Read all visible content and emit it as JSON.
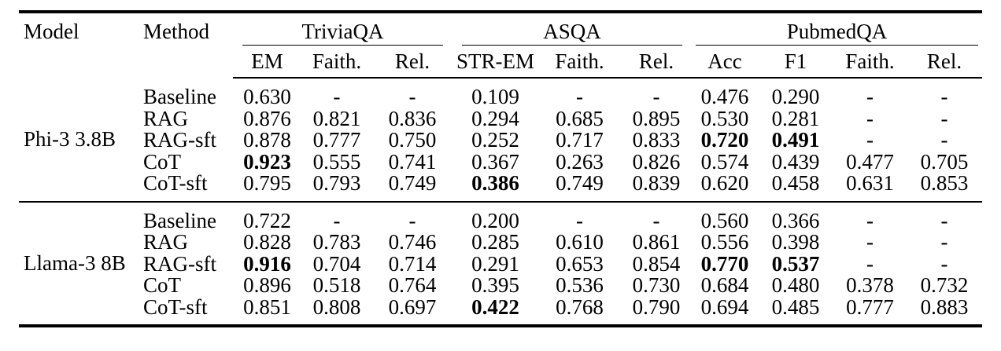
{
  "colors": {
    "background": "#ffffff",
    "text": "#000000",
    "rule": "#000000"
  },
  "table": {
    "model_header": "Model",
    "method_header": "Method",
    "groups": [
      {
        "label": "TriviaQA",
        "subcols": [
          "EM",
          "Faith.",
          "Rel."
        ]
      },
      {
        "label": "ASQA",
        "subcols": [
          "STR-EM",
          "Faith.",
          "Rel."
        ]
      },
      {
        "label": "PubmedQA",
        "subcols": [
          "Acc",
          "F1",
          "Faith.",
          "Rel."
        ]
      }
    ],
    "blocks": [
      {
        "model": "Phi-3 3.8B",
        "rows": [
          {
            "method": "Baseline",
            "values": [
              "0.630",
              "-",
              "-",
              "0.109",
              "-",
              "-",
              "0.476",
              "0.290",
              "-",
              "-"
            ],
            "bold": []
          },
          {
            "method": "RAG",
            "values": [
              "0.876",
              "0.821",
              "0.836",
              "0.294",
              "0.685",
              "0.895",
              "0.530",
              "0.281",
              "-",
              "-"
            ],
            "bold": []
          },
          {
            "method": "RAG-sft",
            "values": [
              "0.878",
              "0.777",
              "0.750",
              "0.252",
              "0.717",
              "0.833",
              "0.720",
              "0.491",
              "-",
              "-"
            ],
            "bold": [
              6,
              7
            ]
          },
          {
            "method": "CoT",
            "values": [
              "0.923",
              "0.555",
              "0.741",
              "0.367",
              "0.263",
              "0.826",
              "0.574",
              "0.439",
              "0.477",
              "0.705"
            ],
            "bold": [
              0
            ]
          },
          {
            "method": "CoT-sft",
            "values": [
              "0.795",
              "0.793",
              "0.749",
              "0.386",
              "0.749",
              "0.839",
              "0.620",
              "0.458",
              "0.631",
              "0.853"
            ],
            "bold": [
              3
            ]
          }
        ]
      },
      {
        "model": "Llama-3 8B",
        "rows": [
          {
            "method": "Baseline",
            "values": [
              "0.722",
              "-",
              "-",
              "0.200",
              "-",
              "-",
              "0.560",
              "0.366",
              "-",
              "-"
            ],
            "bold": []
          },
          {
            "method": "RAG",
            "values": [
              "0.828",
              "0.783",
              "0.746",
              "0.285",
              "0.610",
              "0.861",
              "0.556",
              "0.398",
              "-",
              "-"
            ],
            "bold": []
          },
          {
            "method": "RAG-sft",
            "values": [
              "0.916",
              "0.704",
              "0.714",
              "0.291",
              "0.653",
              "0.854",
              "0.770",
              "0.537",
              "-",
              "-"
            ],
            "bold": [
              0,
              6,
              7
            ]
          },
          {
            "method": "CoT",
            "values": [
              "0.896",
              "0.518",
              "0.764",
              "0.395",
              "0.536",
              "0.730",
              "0.684",
              "0.480",
              "0.378",
              "0.732"
            ],
            "bold": []
          },
          {
            "method": "CoT-sft",
            "values": [
              "0.851",
              "0.808",
              "0.697",
              "0.422",
              "0.768",
              "0.790",
              "0.694",
              "0.485",
              "0.777",
              "0.883"
            ],
            "bold": [
              3
            ]
          }
        ]
      }
    ]
  }
}
